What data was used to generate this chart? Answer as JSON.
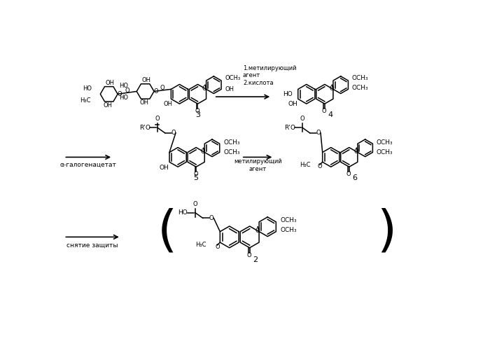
{
  "bg_color": "#ffffff",
  "arrow1_label": "1.метилирующий\nагент\n2.кислота",
  "arrow2_label": "α-галогенацетат",
  "arrow3_label": "метилирующий\nагент",
  "arrow4_label": "снятие защиты",
  "comp3_label": "3",
  "comp4_label": "4",
  "comp5_label": "5",
  "comp6_label": "6",
  "comp2_label": "2"
}
